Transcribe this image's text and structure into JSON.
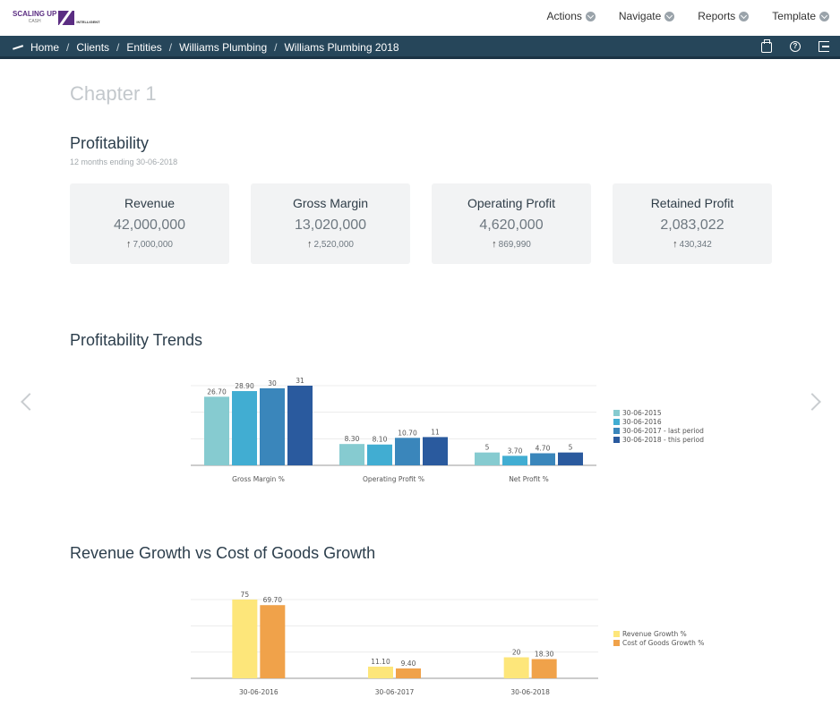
{
  "logo": {
    "name": "SCALING UP",
    "sub": "CASH",
    "tag": "INTELLIGENT"
  },
  "top_menu": [
    {
      "label": "Actions"
    },
    {
      "label": "Navigate"
    },
    {
      "label": "Reports"
    },
    {
      "label": "Template"
    }
  ],
  "breadcrumb": [
    "Home",
    "Clients",
    "Entities",
    "Williams Plumbing",
    "Williams Plumbing 2018"
  ],
  "chapter_title": "Chapter 1",
  "profitability": {
    "title": "Profitability",
    "subtitle": "12 months ending 30-06-2018",
    "cards": [
      {
        "title": "Revenue",
        "value": "42,000,000",
        "delta": "7,000,000"
      },
      {
        "title": "Gross Margin",
        "value": "13,020,000",
        "delta": "2,520,000"
      },
      {
        "title": "Operating Profit",
        "value": "4,620,000",
        "delta": "869,990"
      },
      {
        "title": "Retained Profit",
        "value": "2,083,022",
        "delta": "430,342"
      }
    ]
  },
  "trends_title": "Profitability Trends",
  "growth_title": "Revenue Growth vs Cost of Goods Growth",
  "colors": {
    "nav_bg": "#26465a",
    "series1": [
      "#86cbd0",
      "#41add2",
      "#3a86bb",
      "#2a5a9e"
    ],
    "series2": [
      "#fde67a",
      "#f0a24a"
    ]
  },
  "chart_data": [
    {
      "type": "bar",
      "title": "",
      "categories": [
        "Gross Margin %",
        "Operating Profit %",
        "Net Profit %"
      ],
      "series": [
        {
          "name": "30-06-2015",
          "values": [
            26.7,
            8.3,
            5
          ],
          "labels": [
            "26.70",
            "8.30",
            "5"
          ]
        },
        {
          "name": "30-06-2016",
          "values": [
            28.9,
            8.1,
            3.7
          ],
          "labels": [
            "28.90",
            "8.10",
            "3.70"
          ]
        },
        {
          "name": "30-06-2017 - last period",
          "values": [
            30,
            10.7,
            4.7
          ],
          "labels": [
            "30",
            "10.70",
            "4.70"
          ]
        },
        {
          "name": "30-06-2018 - this period",
          "values": [
            31,
            11,
            5
          ],
          "labels": [
            "31",
            "11",
            "5"
          ]
        }
      ],
      "ylim": [
        0,
        31
      ],
      "grid": true,
      "legend": "right"
    },
    {
      "type": "bar",
      "title": "",
      "categories": [
        "30-06-2016",
        "30-06-2017",
        "30-06-2018"
      ],
      "series": [
        {
          "name": "Revenue Growth %",
          "values": [
            75,
            11.1,
            20
          ],
          "labels": [
            "75",
            "11.10",
            "20"
          ]
        },
        {
          "name": "Cost of Goods Growth %",
          "values": [
            69.7,
            9.4,
            18.3
          ],
          "labels": [
            "69.70",
            "9.40",
            "18.30"
          ]
        }
      ],
      "ylim": [
        0,
        75
      ],
      "grid": true,
      "legend": "right"
    }
  ]
}
